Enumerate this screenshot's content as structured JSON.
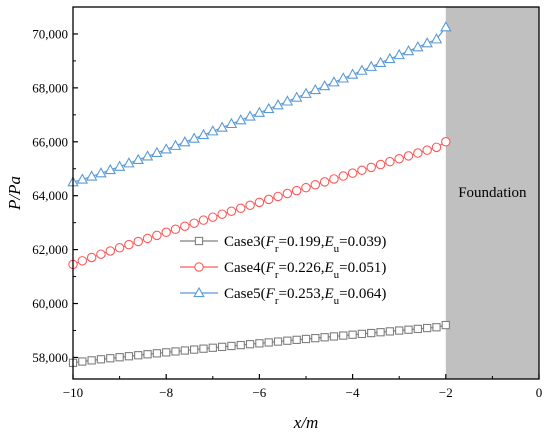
{
  "chart_data": {
    "type": "line",
    "xlabel": "x/m",
    "ylabel": "P/Pa",
    "xlim": [
      -10,
      0
    ],
    "ylim": [
      57200,
      71000
    ],
    "xticks": [
      -10,
      -8,
      -6,
      -4,
      -2,
      0
    ],
    "xtick_labels": [
      "−10",
      "−8",
      "−6",
      "−4",
      "−2",
      "0"
    ],
    "yticks": [
      58000,
      60000,
      62000,
      64000,
      66000,
      68000,
      70000
    ],
    "ytick_labels": [
      "58,000",
      "60,000",
      "62,000",
      "64,000",
      "66,000",
      "68,000",
      "70,000"
    ],
    "grid": false,
    "legend_position": "center",
    "shaded_region": {
      "label": "Foundation",
      "x_range": [
        -2,
        0
      ],
      "color": "#c0c0c0"
    },
    "series": [
      {
        "name": "Case3(Fr=0.199,Eu=0.039)",
        "legend": {
          "case": "Case3",
          "fr": "0.199",
          "eu": "0.039"
        },
        "marker": "square",
        "color": "#7f7f7f",
        "x_start": -10,
        "x_end": -2,
        "n_points": 41,
        "y_start": 57800,
        "y_end": 59150,
        "curve": 0.9,
        "end_value": 59200
      },
      {
        "name": "Case4(Fr=0.226,Eu=0.051)",
        "legend": {
          "case": "Case4",
          "fr": "0.226",
          "eu": "0.051"
        },
        "marker": "circle",
        "color": "#ff5a5a",
        "x_start": -10,
        "x_end": -2,
        "n_points": 41,
        "y_start": 61450,
        "y_end": 65900,
        "curve": 0.95,
        "end_value": 66000
      },
      {
        "name": "Case5(Fr=0.253,Eu=0.064)",
        "legend": {
          "case": "Case5",
          "fr": "0.253",
          "eu": "0.064"
        },
        "marker": "triangle",
        "color": "#5a9ad6",
        "x_start": -10,
        "x_end": -2,
        "n_points": 41,
        "y_start": 64500,
        "y_end": 69950,
        "curve": 1.08,
        "end_value": 70250
      }
    ]
  }
}
